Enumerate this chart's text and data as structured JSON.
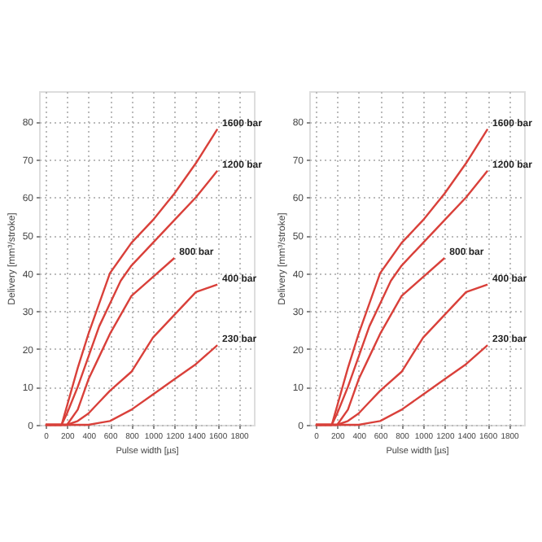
{
  "chart_data": [
    {
      "type": "line",
      "xlabel": "Pulse width [µs]",
      "ylabel": "Delivery [mm³/stroke]",
      "xlim": [
        -60,
        1940
      ],
      "ylim": [
        0,
        88
      ],
      "xticks": [
        0,
        200,
        400,
        600,
        800,
        1000,
        1200,
        1400,
        1600,
        1800
      ],
      "yticks": [
        0,
        10,
        20,
        30,
        40,
        50,
        60,
        70,
        80
      ],
      "grid": true,
      "legend": false,
      "line_style": "solid",
      "series": [
        {
          "name": "1600 bar",
          "color": "#d9403a",
          "x": [
            0,
            150,
            200,
            300,
            400,
            500,
            600,
            700,
            800,
            1000,
            1200,
            1400,
            1600
          ],
          "values": [
            0,
            0,
            5,
            15,
            24,
            32,
            40,
            44,
            48,
            54,
            61,
            69,
            78
          ]
        },
        {
          "name": "1200 bar",
          "color": "#d9403a",
          "x": [
            0,
            150,
            200,
            300,
            400,
            500,
            600,
            700,
            800,
            1000,
            1200,
            1400,
            1600
          ],
          "values": [
            0,
            0,
            3,
            10,
            18,
            26,
            32,
            38,
            42,
            48,
            54,
            60,
            67
          ]
        },
        {
          "name": "800 bar",
          "color": "#d9403a",
          "x": [
            0,
            200,
            300,
            400,
            500,
            600,
            800,
            1000,
            1200
          ],
          "values": [
            0,
            0,
            4,
            12,
            18,
            24,
            34,
            39,
            44
          ]
        },
        {
          "name": "400 bar",
          "color": "#d9403a",
          "x": [
            0,
            200,
            300,
            400,
            500,
            600,
            800,
            1000,
            1200,
            1400,
            1600
          ],
          "values": [
            0,
            0,
            1,
            3,
            6,
            9,
            14,
            23,
            29,
            35,
            37
          ]
        },
        {
          "name": "230 bar",
          "color": "#d9403a",
          "x": [
            0,
            400,
            500,
            600,
            800,
            1000,
            1200,
            1400,
            1600
          ],
          "values": [
            0,
            0,
            0.5,
            1,
            4,
            8,
            12,
            16,
            21
          ]
        }
      ]
    },
    {
      "type": "line",
      "xlabel": "Pulse width [µs]",
      "ylabel": "Delivery [mm³/stroke]",
      "xlim": [
        -60,
        1940
      ],
      "ylim": [
        0,
        88
      ],
      "xticks": [
        0,
        200,
        400,
        600,
        800,
        1000,
        1200,
        1400,
        1600,
        1800
      ],
      "yticks": [
        0,
        10,
        20,
        30,
        40,
        50,
        60,
        70,
        80
      ],
      "grid": true,
      "legend": false,
      "line_style": "solid",
      "series": [
        {
          "name": "1600 bar",
          "color": "#d9403a",
          "x": [
            0,
            150,
            200,
            300,
            400,
            500,
            600,
            700,
            800,
            1000,
            1200,
            1400,
            1600
          ],
          "values": [
            0,
            0,
            5,
            15,
            24,
            32,
            40,
            44,
            48,
            54,
            61,
            69,
            78
          ]
        },
        {
          "name": "1200 bar",
          "color": "#d9403a",
          "x": [
            0,
            150,
            200,
            300,
            400,
            500,
            600,
            700,
            800,
            1000,
            1200,
            1400,
            1600
          ],
          "values": [
            0,
            0,
            3,
            10,
            18,
            26,
            32,
            38,
            42,
            48,
            54,
            60,
            67
          ]
        },
        {
          "name": "800 bar",
          "color": "#d9403a",
          "x": [
            0,
            200,
            300,
            400,
            500,
            600,
            800,
            1000,
            1200
          ],
          "values": [
            0,
            0,
            4,
            12,
            18,
            24,
            34,
            39,
            44
          ]
        },
        {
          "name": "400 bar",
          "color": "#d9403a",
          "x": [
            0,
            200,
            300,
            400,
            500,
            600,
            800,
            1000,
            1200,
            1400,
            1600
          ],
          "values": [
            0,
            0,
            1,
            3,
            6,
            9,
            14,
            23,
            29,
            35,
            37
          ]
        },
        {
          "name": "230 bar",
          "color": "#d9403a",
          "x": [
            0,
            400,
            500,
            600,
            800,
            1000,
            1200,
            1400,
            1600
          ],
          "values": [
            0,
            0,
            0.5,
            1,
            4,
            8,
            12,
            16,
            21
          ]
        }
      ]
    }
  ]
}
